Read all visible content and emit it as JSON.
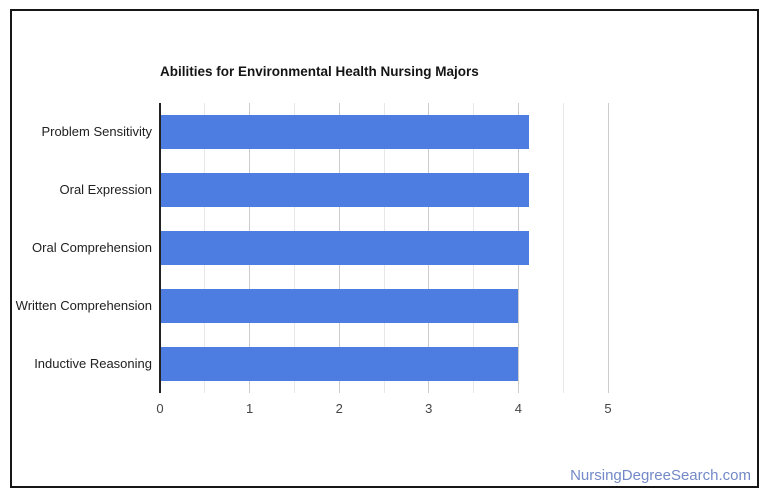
{
  "page": {
    "background": "#ffffff",
    "frame_border_color": "#161616"
  },
  "chart_data": {
    "type": "bar",
    "orientation": "horizontal",
    "title": "Abilities for Environmental Health Nursing Majors",
    "categories": [
      "Problem Sensitivity",
      "Oral Expression",
      "Oral Comprehension",
      "Written Comprehension",
      "Inductive Reasoning"
    ],
    "values": [
      4.12,
      4.12,
      4.12,
      4.0,
      4.0
    ],
    "xlabel": "",
    "ylabel": "",
    "xlim": [
      0,
      5
    ],
    "x_ticks": [
      0,
      1,
      2,
      3,
      4,
      5
    ],
    "grid": "vertical gridlines: major every 1.0, minor every 0.5",
    "legend_position": "none",
    "bar_color": "#4e7de2",
    "major_grid_color": "#cccccc",
    "minor_grid_color": "#e7e7e7",
    "axis_line_color": "#222222",
    "title_color": "#141414",
    "category_label_color": "#212121",
    "tick_label_color": "#444444"
  },
  "watermark": {
    "text": "NursingDegreeSearch.com",
    "color": "#7389c7"
  }
}
